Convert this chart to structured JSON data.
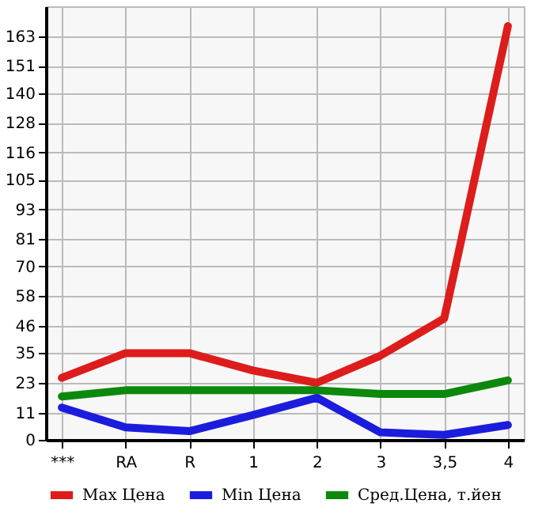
{
  "chart_data": {
    "type": "line",
    "categories": [
      "***",
      "RA",
      "R",
      "1",
      "2",
      "3",
      "3,5",
      "4"
    ],
    "series": [
      {
        "name": "Max Цена",
        "color": "#dd1c1c",
        "values": [
          25,
          35,
          35,
          28,
          23,
          34,
          49,
          167
        ]
      },
      {
        "name": "Min Цена",
        "color": "#1c1cdd",
        "values": [
          13,
          5,
          3.5,
          10,
          17,
          3,
          2,
          6
        ]
      },
      {
        "name": "Сред.Цена, т.йен",
        "color": "#0c880c",
        "values": [
          17.5,
          20,
          20,
          20,
          20,
          18.5,
          18.5,
          24
        ]
      }
    ],
    "ylim": [
      0,
      175
    ],
    "yticks": [
      0,
      11,
      23,
      35,
      46,
      58,
      70,
      81,
      93,
      105,
      116,
      128,
      140,
      151,
      163
    ],
    "grid": true,
    "legend": "bottom",
    "marker": "none",
    "line_style": "solid"
  }
}
